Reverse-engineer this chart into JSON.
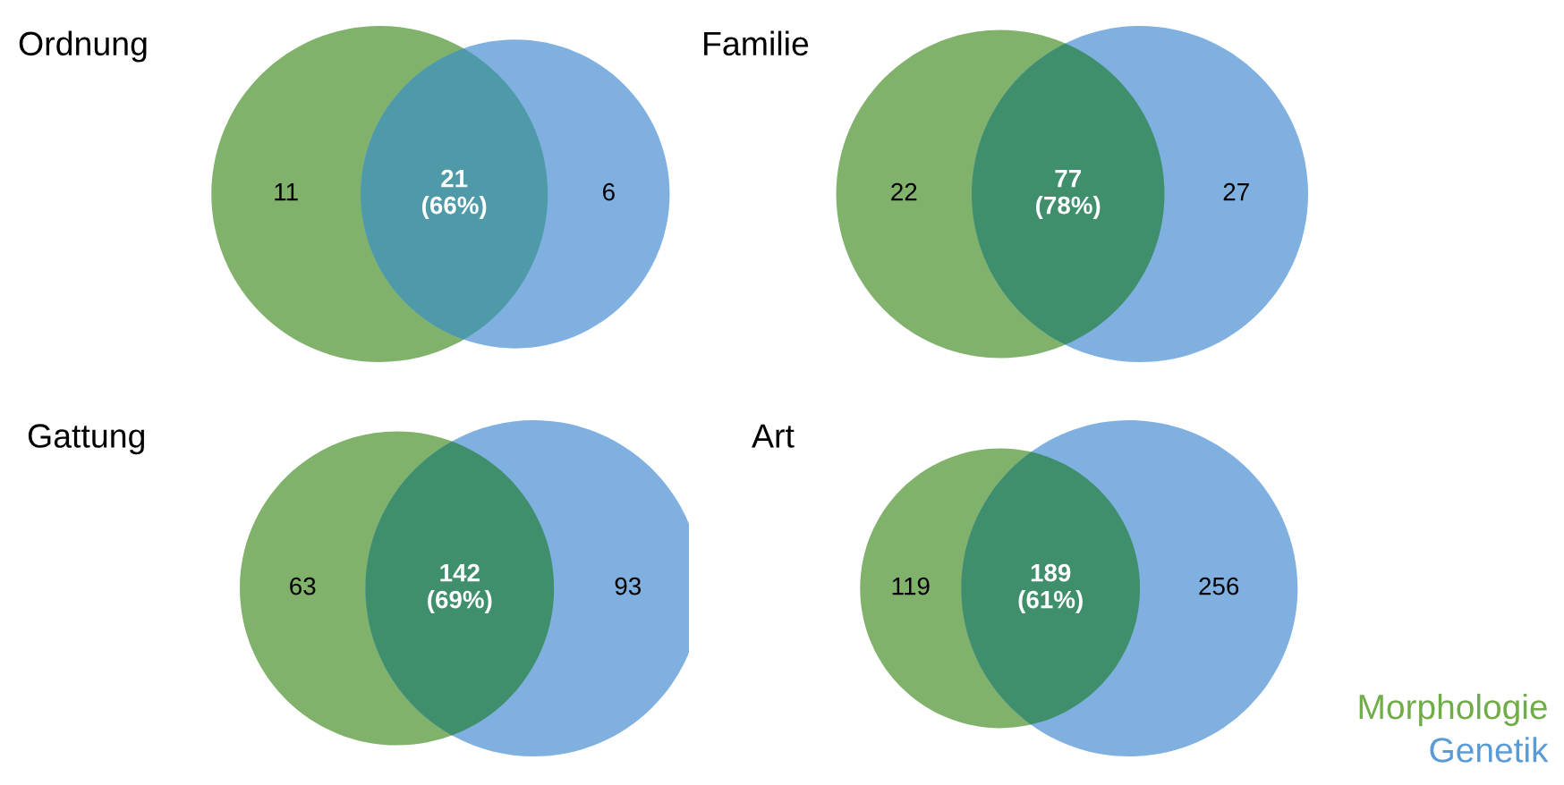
{
  "chart_data": [
    {
      "type": "other",
      "title": "Ordnung",
      "values": [
        11,
        21,
        6
      ],
      "value_labels": [
        "11",
        "21\n(66%)",
        "6"
      ],
      "colors": [
        "#80b26c",
        "#4f9aa8",
        "#7fb0e0"
      ]
    },
    {
      "type": "other",
      "title": "Familie",
      "values": [
        22,
        77,
        27
      ],
      "value_labels": [
        "22",
        "77\n(78%)",
        "27"
      ],
      "colors": [
        "#80b26c",
        "#3f8f6c",
        "#7fb0e0"
      ]
    },
    {
      "type": "other",
      "title": "Gattung",
      "values": [
        63,
        142,
        93
      ],
      "value_labels": [
        "63",
        "142\n(69%)",
        "93"
      ],
      "colors": [
        "#80b26c",
        "#3f8f6c",
        "#7fb0e0"
      ]
    },
    {
      "type": "other",
      "title": "Art",
      "values": [
        119,
        189,
        256
      ],
      "value_labels": [
        "119",
        "189\n(61%)",
        "256"
      ],
      "colors": [
        "#80b26c",
        "#3f8f6c",
        "#7fb0e0"
      ]
    },
    {
      "type": "other",
      "series": [
        {
          "name": "Morphologie",
          "color": "#70ad47"
        },
        {
          "name": "Genetik",
          "color": "#5b9bd5"
        }
      ]
    }
  ]
}
